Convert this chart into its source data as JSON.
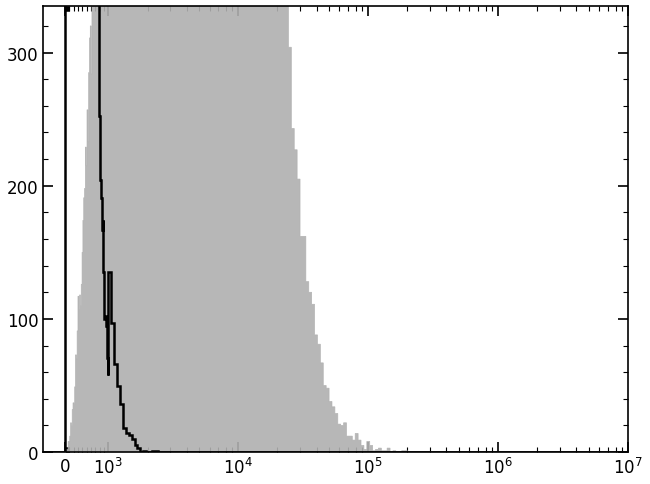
{
  "title": "",
  "xlabel": "",
  "ylabel": "",
  "ylim": [
    0,
    335
  ],
  "yticks": [
    0,
    100,
    200,
    300
  ],
  "background_color": "#ffffff",
  "gray_color": "#b0b0b0",
  "black_color": "#000000",
  "linthresh": 1000,
  "linscale": 0.3,
  "xlim_min": -500,
  "xlim_max": 10000000,
  "black_peak_log": 2.45,
  "black_peak_sigma": 0.2,
  "black_n": 160000,
  "black_noise_log": 1.5,
  "black_noise_sigma": 0.3,
  "black_noise_n": 5000,
  "gray_peak_log": 3.55,
  "gray_peak_sigma": 0.38,
  "gray_n": 120000,
  "gray_extra1_log": 3.2,
  "gray_extra1_sigma": 0.2,
  "gray_extra1_n": 20000,
  "gray_extra2_log": 3.8,
  "gray_extra2_sigma": 0.25,
  "gray_extra2_n": 15000,
  "gray_extra3_log": 3.55,
  "gray_extra3_sigma": 0.5,
  "gray_extra3_n": 10000
}
